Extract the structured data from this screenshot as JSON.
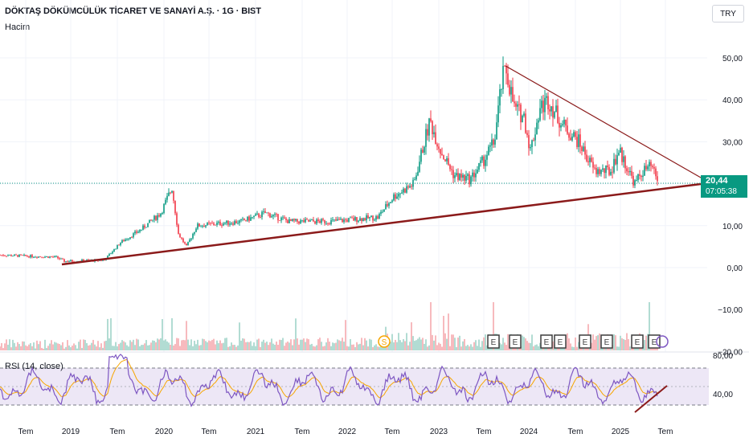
{
  "header": {
    "title": "DÖKTAŞ DÖKÜMCÜLÜK TİCARET VE SANAYİ A.Ş. · 1G · BIST",
    "volume_label": "Hacim",
    "currency": "TRY"
  },
  "price_axis": {
    "ticks": [
      "50,00",
      "40,00",
      "30,00",
      "20,00",
      "10,00",
      "0,00",
      "−10,00",
      "−20,00"
    ]
  },
  "last_price": {
    "value": "20,44",
    "countdown": "07:05:38"
  },
  "rsi": {
    "label": "RSI (14, close)",
    "ticks": [
      "80,00",
      "40,00"
    ]
  },
  "time_axis": {
    "labels": [
      "Tem",
      "2019",
      "Tem",
      "2020",
      "Tem",
      "2021",
      "Tem",
      "2022",
      "Tem",
      "2023",
      "Tem",
      "2024",
      "Tem",
      "2025",
      "Tem"
    ]
  },
  "events": {
    "dividend_label": "S",
    "earnings_label": "E",
    "earnings_count": 8
  },
  "colors": {
    "up": "#089981",
    "down": "#f23645",
    "trendline": "#8b1a1a",
    "rsi_line": "#7e57c2",
    "rsi_ma": "#f7a600",
    "rsi_band": "#ede7f6",
    "price_box": "#089981",
    "earnings_box": "#3d3d3d",
    "dividend": "#f7a600"
  },
  "chart_data": {
    "type": "candlestick",
    "description_source": "Daily price of DOKTA (BIST) with volume and RSI panels",
    "x": [
      "2018-07",
      "2019-01",
      "2019-07",
      "2020-01",
      "2020-07",
      "2021-01",
      "2021-07",
      "2022-01",
      "2022-07",
      "2023-01",
      "2023-07",
      "2023-09",
      "2024-01",
      "2024-07",
      "2025-01",
      "2025-05"
    ],
    "close": [
      2.5,
      1.5,
      2.0,
      12,
      10,
      13,
      11,
      11,
      12,
      34,
      22,
      48,
      35,
      25,
      22,
      20.44
    ],
    "ylim": [
      -20,
      52
    ],
    "rsi_ylim": [
      20,
      90
    ],
    "rsi_levels": [
      70,
      30
    ],
    "trendlines": [
      {
        "name": "support",
        "from": [
          "2018-10",
          0.5
        ],
        "to": [
          "2025-09",
          20
        ]
      },
      {
        "name": "resistance",
        "from": [
          "2023-09",
          48
        ],
        "to": [
          "2025-09",
          20
        ]
      },
      {
        "name": "rsi-support",
        "from": [
          "2025-04",
          24
        ],
        "to": [
          "2025-07",
          37
        ]
      }
    ]
  }
}
